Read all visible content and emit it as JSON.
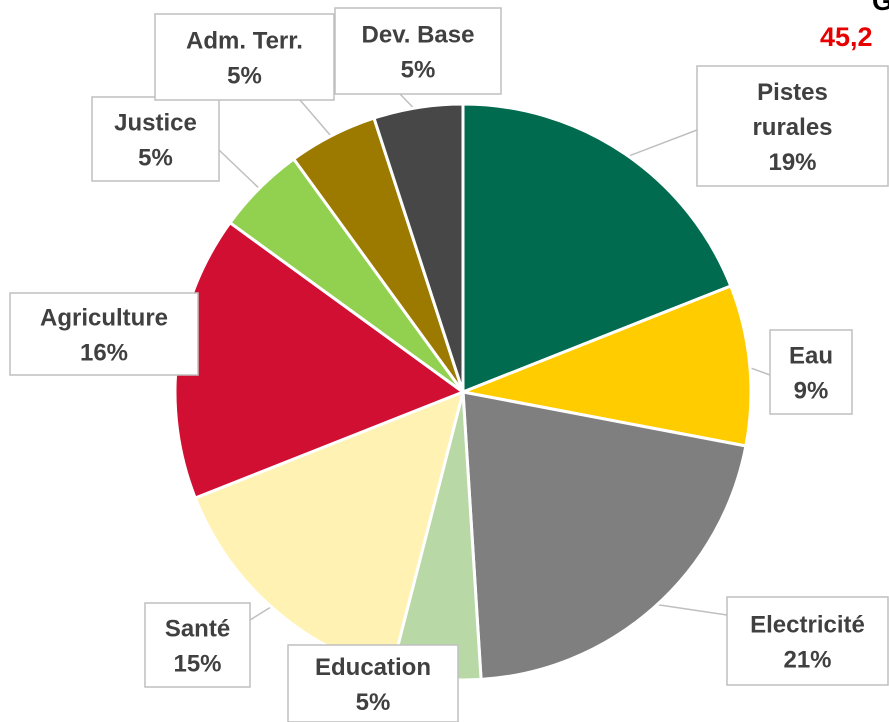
{
  "corner": {
    "title_fragment": "G",
    "total_fragment": "45,2"
  },
  "chart_data": {
    "type": "pie",
    "categories": [
      "Pistes rurales",
      "Eau",
      "Electricité",
      "Education",
      "Santé",
      "Agriculture",
      "Justice",
      "Adm. Terr.",
      "Dev. Base"
    ],
    "values": [
      19,
      9,
      21,
      5,
      15,
      16,
      5,
      5,
      5
    ],
    "label_lines": [
      [
        "Pistes",
        "rurales",
        "19%"
      ],
      [
        "Eau",
        "9%"
      ],
      [
        "Electricité",
        "21%"
      ],
      [
        "Education",
        "5%"
      ],
      [
        "Santé",
        "15%"
      ],
      [
        "Agriculture",
        "16%"
      ],
      [
        "Justice",
        "5%"
      ],
      [
        "Adm. Terr.",
        "5%"
      ],
      [
        "Dev. Base",
        "5%"
      ]
    ],
    "colors": [
      "#006b4f",
      "#ffcc00",
      "#7f7f7f",
      "#b8d8a6",
      "#fff2b3",
      "#d00f32",
      "#92d050",
      "#9c7a00",
      "#474747"
    ],
    "title": "",
    "legend": "none"
  }
}
